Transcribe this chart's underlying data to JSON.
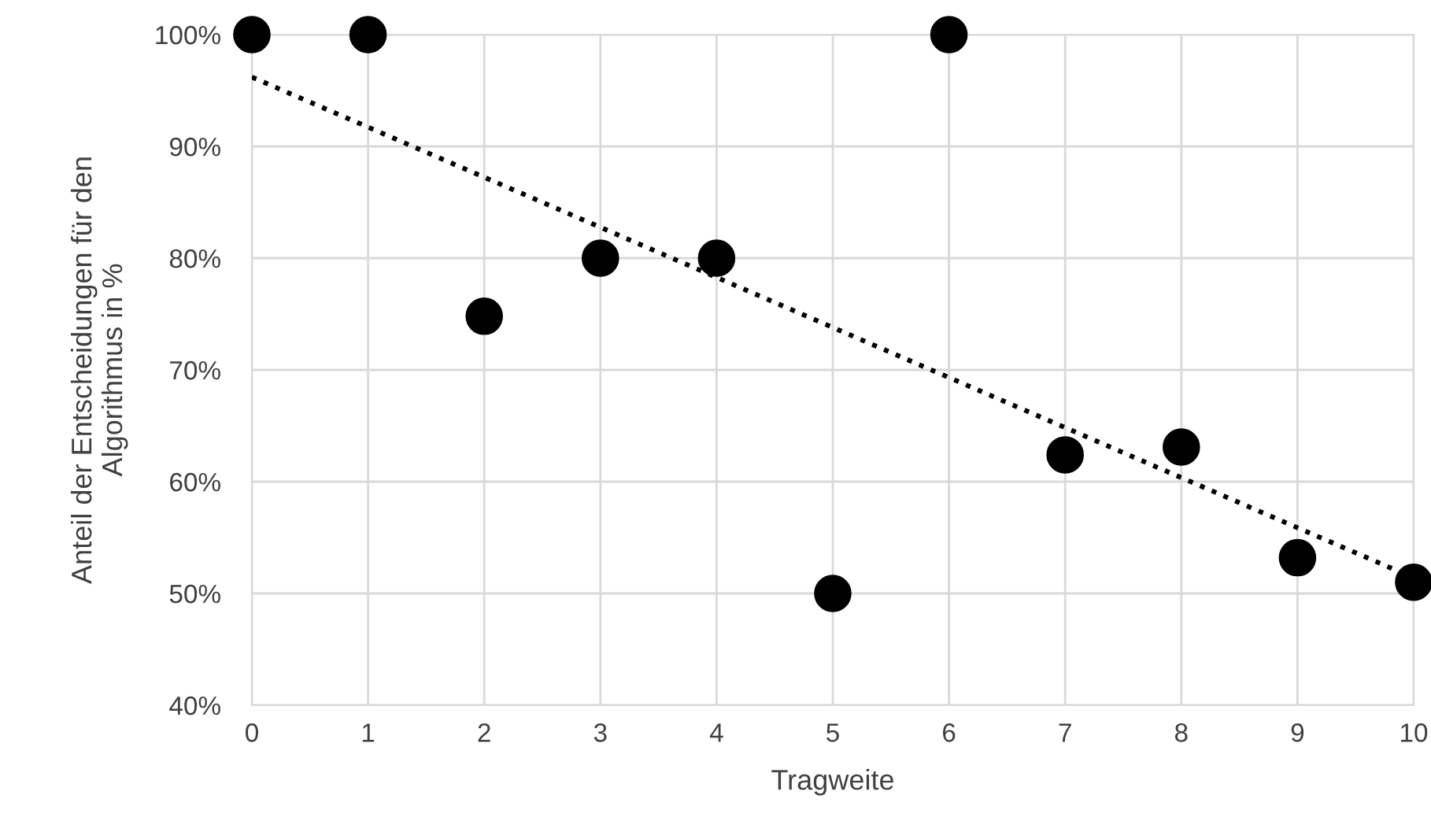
{
  "chart_data": {
    "type": "scatter",
    "xlabel": "Tragweite",
    "ylabel": "Anteil der Entscheidungen für den\nAlgorithmus in %",
    "x": [
      0,
      1,
      2,
      3,
      4,
      5,
      6,
      7,
      8,
      9,
      10
    ],
    "series": [
      {
        "color": "#000000",
        "marker": "circle",
        "values": [
          100,
          100,
          74.8,
          80,
          80,
          50,
          100,
          62.4,
          63.1,
          53.2,
          51.0
        ]
      },
      {
        "type": "line",
        "color": "#000000",
        "line_style": "dotted",
        "marker": "none",
        "x": [
          0,
          10
        ],
        "values": [
          96.2,
          51.4
        ]
      }
    ],
    "xlim": [
      0,
      10
    ],
    "xticks": [
      0,
      1,
      2,
      3,
      4,
      5,
      6,
      7,
      8,
      9,
      10
    ],
    "ylim": [
      40,
      100
    ],
    "yticks": [
      {
        "value": 40,
        "label": "40%"
      },
      {
        "value": 50,
        "label": "50%"
      },
      {
        "value": 60,
        "label": "60%"
      },
      {
        "value": 70,
        "label": "70%"
      },
      {
        "value": 80,
        "label": "80%"
      },
      {
        "value": 90,
        "label": "90%"
      },
      {
        "value": 100,
        "label": "100%"
      }
    ],
    "grid": true,
    "legend": false
  }
}
